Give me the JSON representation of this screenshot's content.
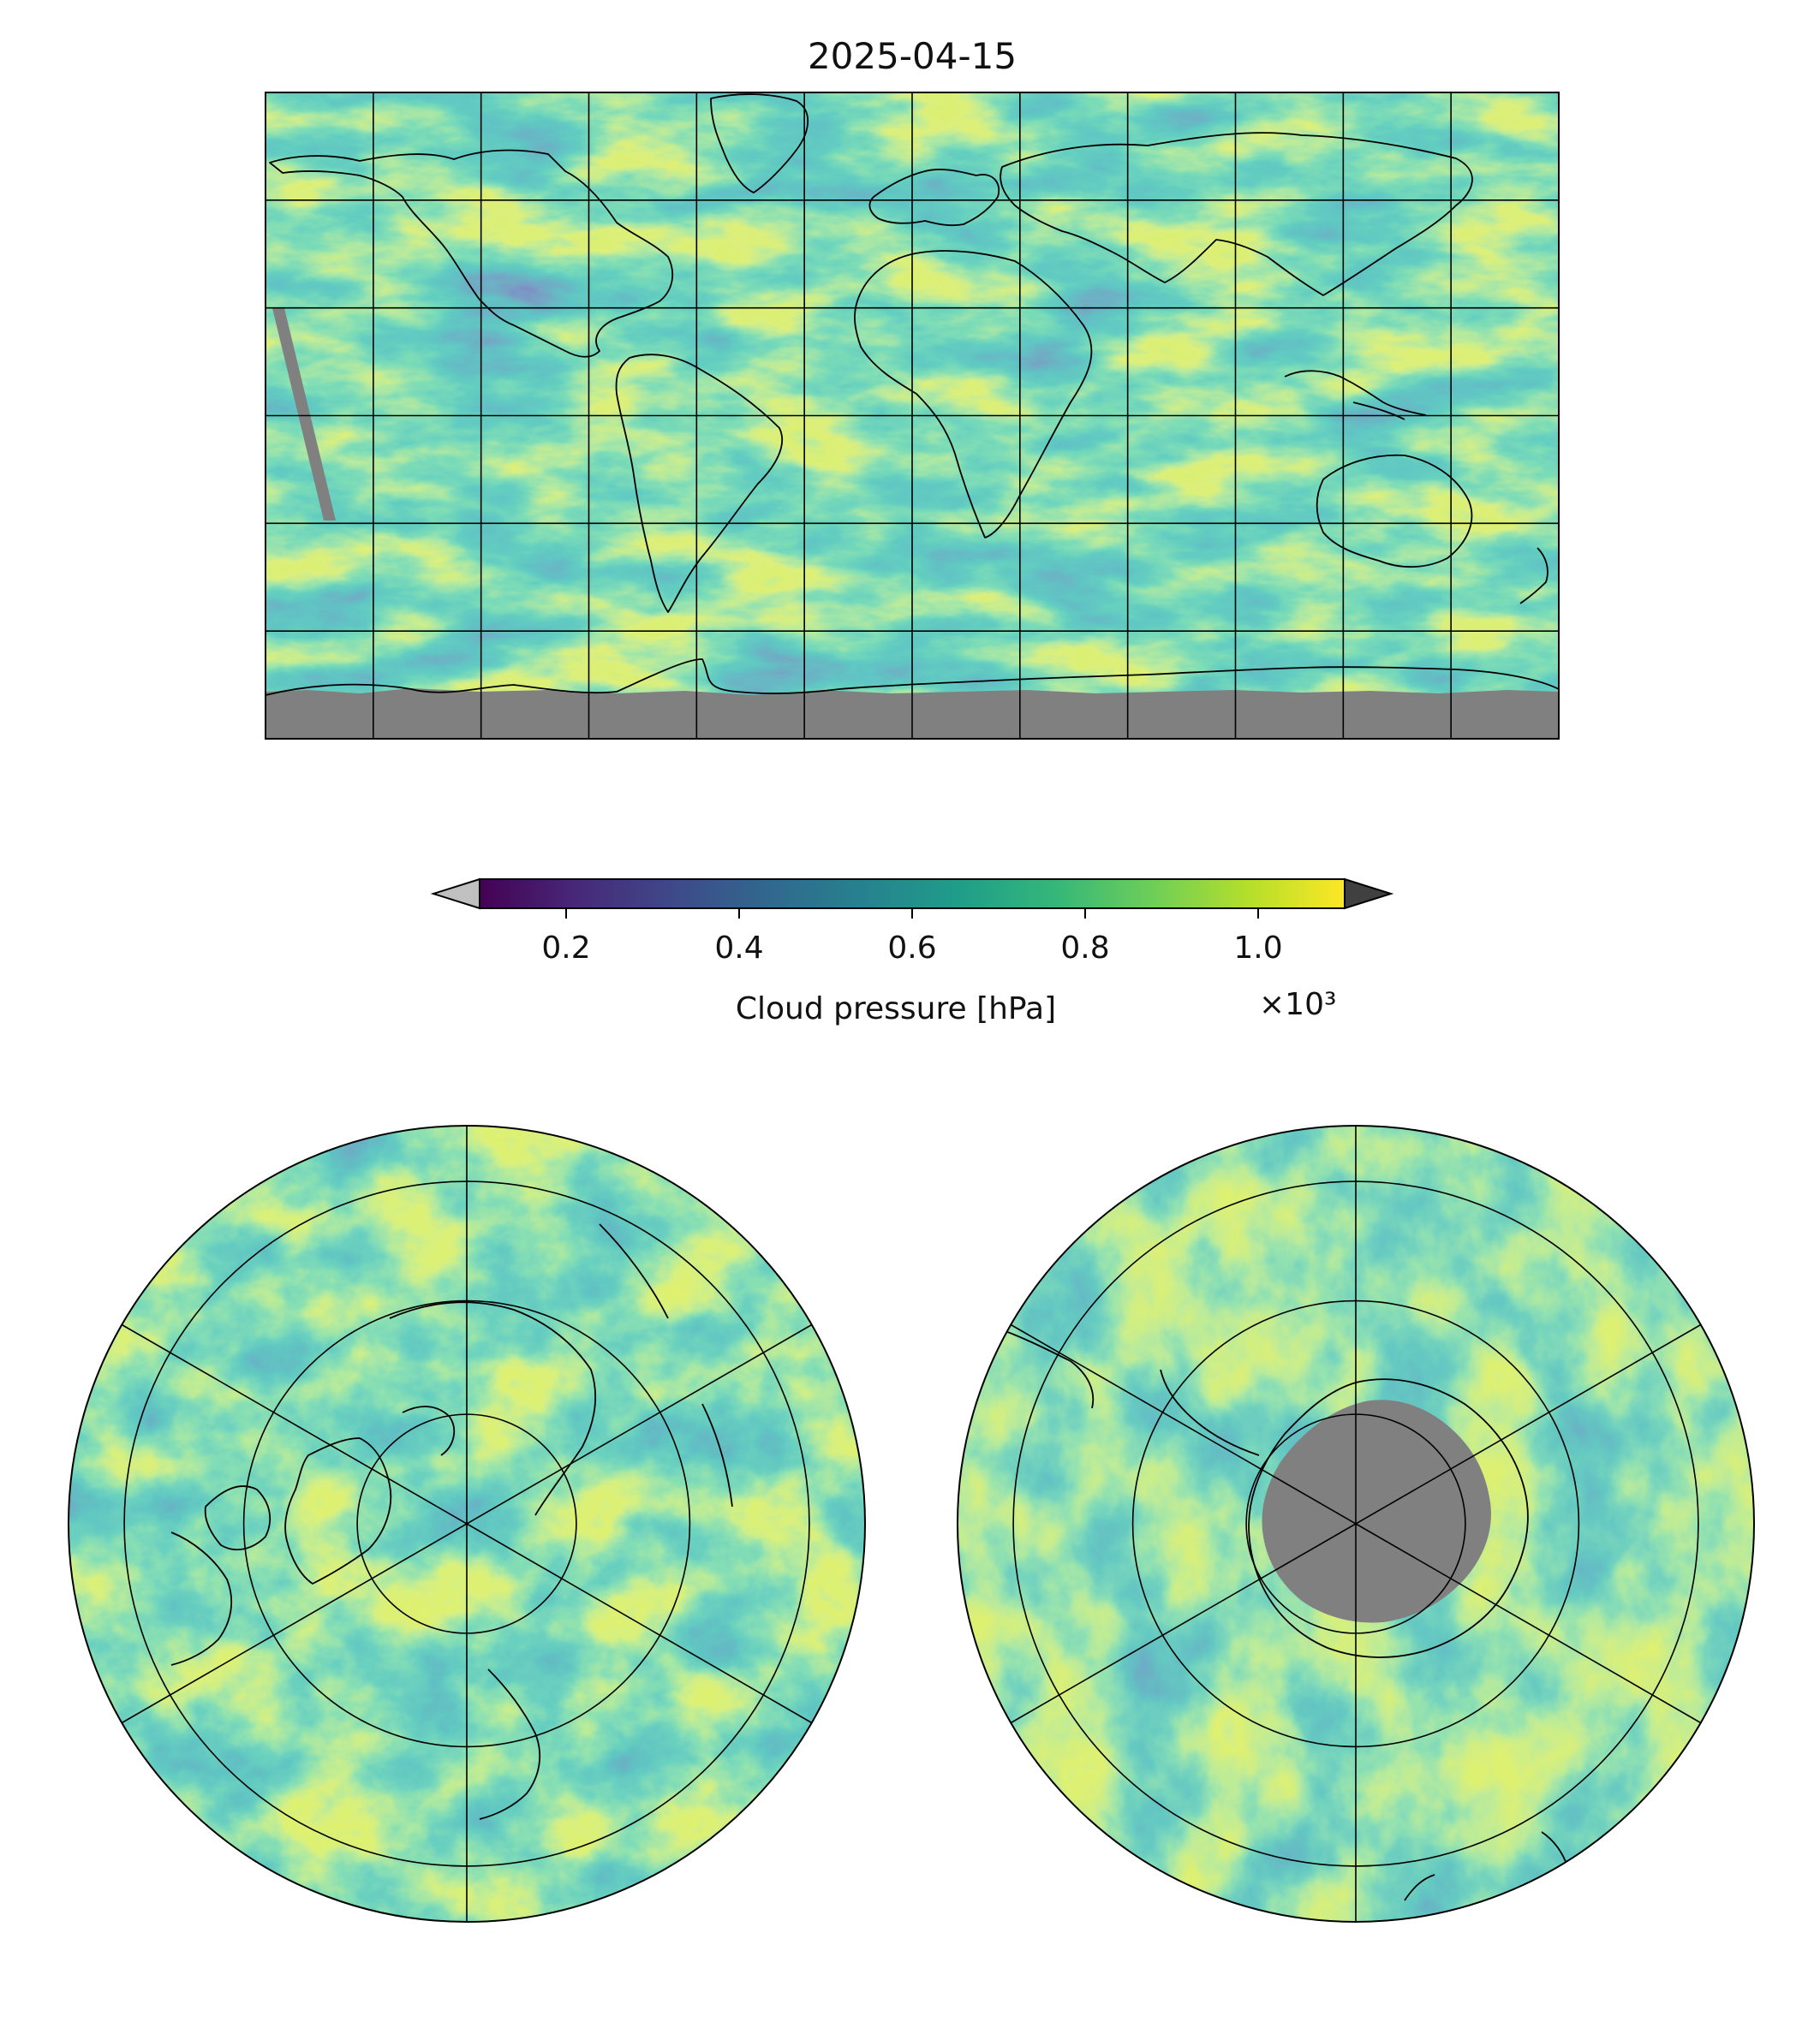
{
  "figure": {
    "title": "2025-04-15"
  },
  "colorbar": {
    "label": "Cloud pressure [hPa]",
    "offset_text": "×10³",
    "ticks": [
      "0.2",
      "0.4",
      "0.6",
      "0.8",
      "1.0"
    ],
    "tick_values": [
      0.2,
      0.4,
      0.6,
      0.8,
      1.0
    ],
    "vmin": 0.1,
    "vmax": 1.1,
    "colormap": "viridis",
    "under_color": "#c0c0c0",
    "over_color": "#404040",
    "stops": [
      "#440154",
      "#482878",
      "#3e4989",
      "#31688e",
      "#26828e",
      "#1f9e89",
      "#35b779",
      "#6ece58",
      "#b5de2b",
      "#fde725"
    ]
  },
  "maps": {
    "global": {
      "projection": "PlateCarree",
      "missing_color": "#808080"
    },
    "north_polar": {
      "projection": "NorthPolarStereo",
      "missing_color": "#808080"
    },
    "south_polar": {
      "projection": "SouthPolarStereo",
      "missing_color": "#808080"
    }
  }
}
